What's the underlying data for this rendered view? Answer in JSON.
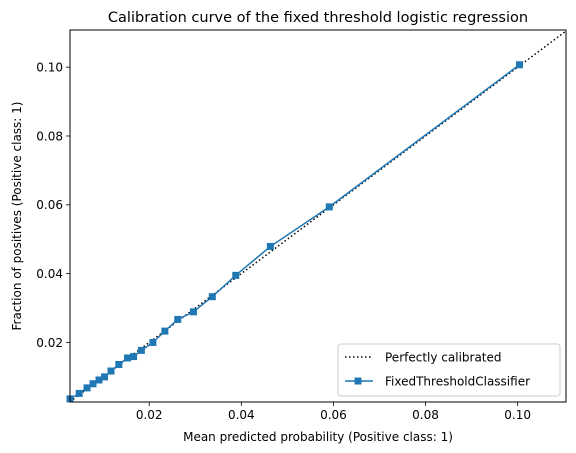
{
  "chart_data": {
    "type": "line",
    "title": "Calibration curve of the fixed threshold logistic regression",
    "xlabel": "Mean predicted probability (Positive class: 1)",
    "ylabel": "Fraction of positives (Positive class: 1)",
    "xlim": [
      0.0028,
      0.1105
    ],
    "ylim": [
      0.0027,
      0.1108
    ],
    "xticks": [
      0.02,
      0.04,
      0.06,
      0.08,
      0.1
    ],
    "xtick_labels": [
      "0.02",
      "0.04",
      "0.06",
      "0.08",
      "0.10"
    ],
    "yticks": [
      0.02,
      0.04,
      0.06,
      0.08,
      0.1
    ],
    "ytick_labels": [
      "0.02",
      "0.04",
      "0.06",
      "0.08",
      "0.10"
    ],
    "grid": false,
    "legend_position": "bottom-right",
    "series": [
      {
        "name": "Perfectly calibrated",
        "style": "dotted",
        "color": "#000000",
        "marker": "none",
        "x": [
          0.0,
          0.1105
        ],
        "y": [
          0.0,
          0.1105
        ]
      },
      {
        "name": "FixedThresholdClassifier",
        "style": "solid",
        "color": "#1f77b4",
        "marker": "square",
        "x": [
          0.0028,
          0.0048,
          0.0065,
          0.0078,
          0.0091,
          0.0103,
          0.0117,
          0.0134,
          0.0153,
          0.0166,
          0.0183,
          0.0208,
          0.0234,
          0.0262,
          0.0296,
          0.0337,
          0.0388,
          0.0463,
          0.0591,
          0.1004
        ],
        "y": [
          0.0036,
          0.0052,
          0.0068,
          0.008,
          0.0091,
          0.01,
          0.0117,
          0.0136,
          0.0155,
          0.0159,
          0.0177,
          0.02,
          0.0233,
          0.0267,
          0.0289,
          0.0333,
          0.0395,
          0.0479,
          0.0594,
          0.1007
        ]
      }
    ]
  }
}
